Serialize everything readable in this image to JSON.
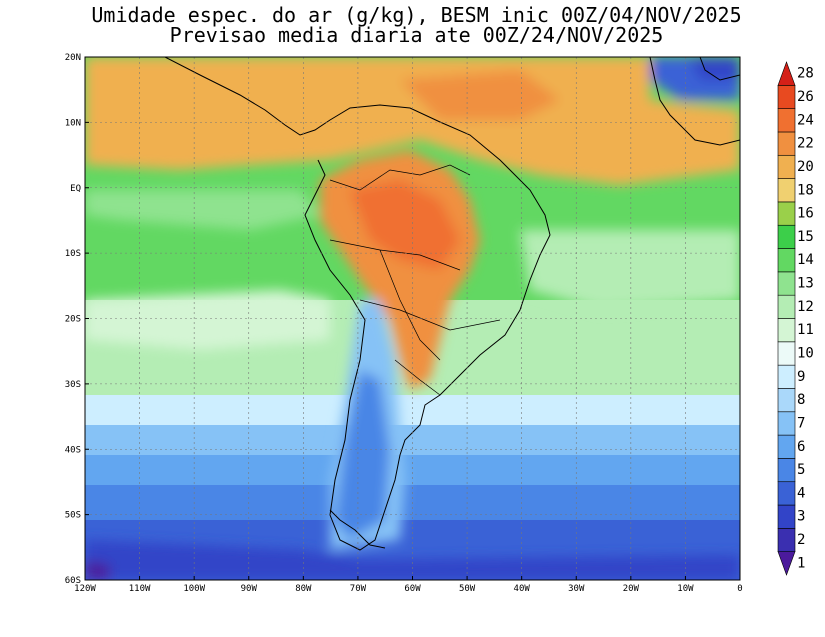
{
  "title": {
    "line1": "Umidade espec. do ar (g/kg), BESM inic 00Z/04/NOV/2025",
    "line2": "Previsao media diaria ate 00Z/24/NOV/2025"
  },
  "map": {
    "lon_range": [
      -120,
      0
    ],
    "lat_range": [
      -60,
      20
    ],
    "lon_labels": [
      "120W",
      "110W",
      "100W",
      "90W",
      "80W",
      "70W",
      "60W",
      "50W",
      "40W",
      "30W",
      "20W",
      "10W",
      "0"
    ],
    "lat_labels": [
      "20N",
      "10N",
      "EQ",
      "10S",
      "20S",
      "30S",
      "40S",
      "50S",
      "60S"
    ],
    "gridlines": "dotted"
  },
  "colorbar": {
    "levels": [
      "1",
      "2",
      "3",
      "4",
      "5",
      "6",
      "7",
      "8",
      "9",
      "10",
      "11",
      "12",
      "13",
      "14",
      "15",
      "16",
      "18",
      "20",
      "22",
      "24",
      "26",
      "28"
    ],
    "colors": [
      "#4b1a9c",
      "#3a2fb0",
      "#3244c8",
      "#3a62d6",
      "#4a86e6",
      "#62a6f0",
      "#86c2f6",
      "#aad8fa",
      "#cdeeff",
      "#ecfaf8",
      "#d4f5d4",
      "#b4edb4",
      "#8fe38f",
      "#62d862",
      "#3ccf4a",
      "#9ad04a",
      "#f0d070",
      "#f0b050",
      "#f09040",
      "#f07030",
      "#e84a20",
      "#d42018"
    ]
  }
}
